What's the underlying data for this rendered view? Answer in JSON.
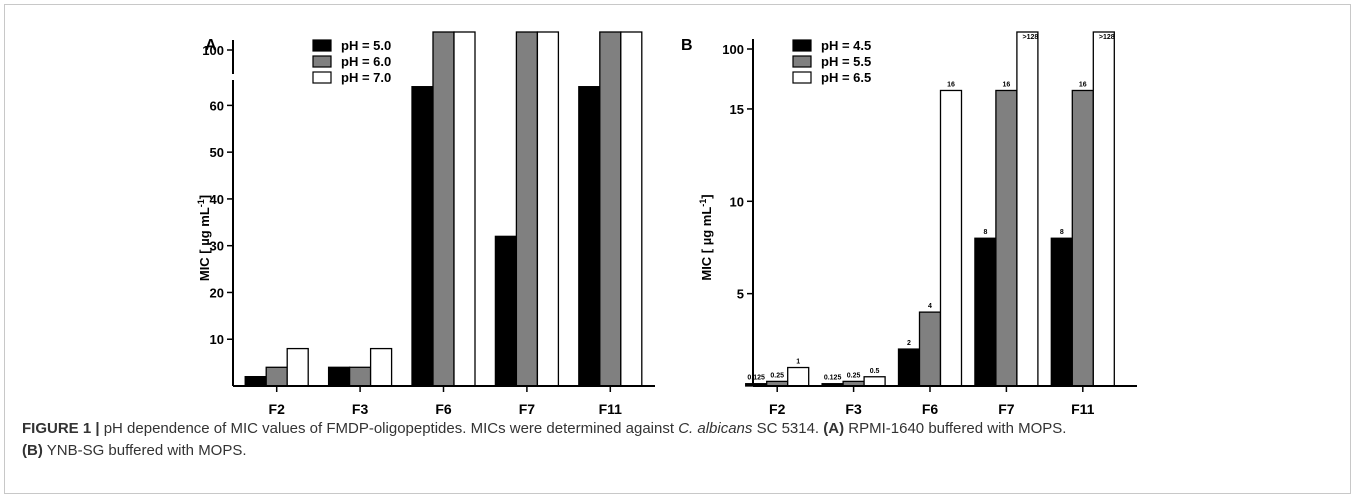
{
  "caption": {
    "label": "FIGURE 1 |",
    "text_before": "pH dependence of MIC values of FMDP-oligopeptides. MICs were determined against",
    "species": "C. albicans",
    "text_after": "SC 5314.",
    "part_a_label": "(A)",
    "part_a_text": "RPMI-1640 buffered with MOPS.",
    "part_b_label": "(B)",
    "part_b_text": "YNB-SG buffered with MOPS."
  },
  "colors": {
    "black": "#000000",
    "gray": "#808080",
    "white": "#ffffff"
  },
  "chart_data": [
    {
      "type": "bar",
      "panel_label": "A",
      "ylabel_prefix": "MIC [ ",
      "ylabel_unit": "µg mL",
      "ylabel_sup": "-1",
      "ylabel_suffix": "]",
      "categories": [
        "F2",
        "F3",
        "F6",
        "F7",
        "F11"
      ],
      "series": [
        {
          "name": "pH = 5.0",
          "color": "#000000",
          "values": [
            2,
            4,
            64,
            32,
            64
          ]
        },
        {
          "name": "pH = 6.0",
          "color": "#808080",
          "values": [
            4,
            4,
            128,
            128,
            128
          ]
        },
        {
          "name": "pH = 7.0",
          "color": "#ffffff",
          "values": [
            8,
            8,
            128,
            128,
            128
          ]
        }
      ],
      "yticks": [
        10,
        20,
        30,
        40,
        50,
        60,
        100
      ],
      "ylim": [
        0,
        100
      ],
      "axis_break": [
        65,
        98
      ],
      "legend_position": "top-left",
      "grid": false
    },
    {
      "type": "bar",
      "panel_label": "B",
      "ylabel_prefix": "MIC [ ",
      "ylabel_unit": "µg mL",
      "ylabel_sup": "-1",
      "ylabel_suffix": "]",
      "categories": [
        "F2",
        "F3",
        "F6",
        "F7",
        "F11"
      ],
      "series": [
        {
          "name": "pH = 4.5",
          "color": "#000000",
          "values": [
            0.125,
            0.125,
            2,
            8,
            8
          ],
          "labels": [
            "0.125",
            "0.125",
            "2",
            "8",
            "8"
          ]
        },
        {
          "name": "pH = 5.5",
          "color": "#808080",
          "values": [
            0.25,
            0.25,
            4,
            16,
            16
          ],
          "labels": [
            "0.25",
            "0.25",
            "4",
            "16",
            "16"
          ]
        },
        {
          "name": "pH = 6.5",
          "color": "#ffffff",
          "values": [
            1,
            0.5,
            16,
            128,
            128
          ],
          "labels": [
            "1",
            "0.5",
            "16",
            ">128",
            ">128"
          ]
        }
      ],
      "yticks": [
        5,
        10,
        15,
        100
      ],
      "ylim": [
        0,
        100
      ],
      "axis_break": [
        17,
        98
      ],
      "legend_position": "top-left",
      "grid": false
    }
  ]
}
